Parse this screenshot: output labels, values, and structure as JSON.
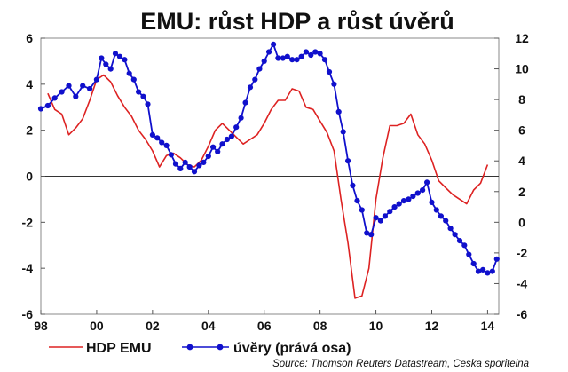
{
  "chart_data": {
    "type": "line",
    "title": "EMU: růst HDP a růst úvěrů",
    "source": "Source: Thomson Reuters Datastream, Ceska sporitelna",
    "x_ticks": [
      "98",
      "00",
      "02",
      "04",
      "06",
      "08",
      "10",
      "12",
      "14"
    ],
    "x_range": [
      1998.0,
      2014.4
    ],
    "y_left": {
      "range": [
        -6,
        6
      ],
      "ticks": [
        "6",
        "4",
        "2",
        "0",
        "-2",
        "-4",
        "-6"
      ]
    },
    "y_right": {
      "range": [
        -6,
        12
      ],
      "ticks": [
        "12",
        "10",
        "8",
        "6",
        "4",
        "2",
        "0",
        "-2",
        "-4",
        "-6"
      ]
    },
    "grid": false,
    "legend_position": "bottom",
    "colors": {
      "gdp": "#dd2222",
      "credit": "#1010cc"
    },
    "series": [
      {
        "name": "HDP EMU",
        "axis": "left",
        "marker": "none",
        "points": [
          [
            1998.25,
            3.6
          ],
          [
            1998.5,
            2.9
          ],
          [
            1998.75,
            2.7
          ],
          [
            1999.0,
            1.8
          ],
          [
            1999.25,
            2.1
          ],
          [
            1999.5,
            2.5
          ],
          [
            1999.75,
            3.3
          ],
          [
            2000.0,
            4.2
          ],
          [
            2000.25,
            4.4
          ],
          [
            2000.5,
            4.1
          ],
          [
            2000.75,
            3.5
          ],
          [
            2001.0,
            3.0
          ],
          [
            2001.25,
            2.6
          ],
          [
            2001.5,
            2.0
          ],
          [
            2001.75,
            1.6
          ],
          [
            2002.0,
            1.1
          ],
          [
            2002.25,
            0.4
          ],
          [
            2002.5,
            0.9
          ],
          [
            2002.75,
            1.0
          ],
          [
            2003.0,
            0.8
          ],
          [
            2003.25,
            0.5
          ],
          [
            2003.5,
            0.4
          ],
          [
            2003.75,
            0.7
          ],
          [
            2004.0,
            1.3
          ],
          [
            2004.25,
            2.0
          ],
          [
            2004.5,
            2.3
          ],
          [
            2004.75,
            2.0
          ],
          [
            2005.0,
            1.7
          ],
          [
            2005.25,
            1.4
          ],
          [
            2005.5,
            1.6
          ],
          [
            2005.75,
            1.8
          ],
          [
            2006.0,
            2.3
          ],
          [
            2006.25,
            2.9
          ],
          [
            2006.5,
            3.3
          ],
          [
            2006.75,
            3.3
          ],
          [
            2007.0,
            3.8
          ],
          [
            2007.25,
            3.7
          ],
          [
            2007.5,
            3.0
          ],
          [
            2007.75,
            2.9
          ],
          [
            2008.0,
            2.4
          ],
          [
            2008.25,
            1.9
          ],
          [
            2008.5,
            1.1
          ],
          [
            2008.75,
            -1.0
          ],
          [
            2009.0,
            -2.9
          ],
          [
            2009.25,
            -5.3
          ],
          [
            2009.5,
            -5.2
          ],
          [
            2009.75,
            -4.0
          ],
          [
            2010.0,
            -1.0
          ],
          [
            2010.25,
            0.8
          ],
          [
            2010.5,
            2.2
          ],
          [
            2010.75,
            2.2
          ],
          [
            2011.0,
            2.3
          ],
          [
            2011.25,
            2.7
          ],
          [
            2011.5,
            1.8
          ],
          [
            2011.75,
            1.4
          ],
          [
            2012.0,
            0.7
          ],
          [
            2012.25,
            -0.2
          ],
          [
            2012.5,
            -0.5
          ],
          [
            2012.75,
            -0.8
          ],
          [
            2013.0,
            -1.0
          ],
          [
            2013.25,
            -1.2
          ],
          [
            2013.5,
            -0.6
          ],
          [
            2013.75,
            -0.3
          ],
          [
            2014.0,
            0.5
          ]
        ]
      },
      {
        "name": "úvěry (pravá osa)",
        "axis": "right",
        "marker": "dot",
        "points": [
          [
            1998.0,
            7.4
          ],
          [
            1998.25,
            7.6
          ],
          [
            1998.5,
            8.1
          ],
          [
            1998.75,
            8.5
          ],
          [
            1999.0,
            8.9
          ],
          [
            1999.25,
            8.2
          ],
          [
            1999.5,
            8.9
          ],
          [
            1999.75,
            8.7
          ],
          [
            2000.0,
            9.3
          ],
          [
            2000.17,
            10.7
          ],
          [
            2000.33,
            10.3
          ],
          [
            2000.5,
            10.0
          ],
          [
            2000.67,
            11.0
          ],
          [
            2000.83,
            10.8
          ],
          [
            2001.0,
            10.6
          ],
          [
            2001.17,
            9.7
          ],
          [
            2001.33,
            9.3
          ],
          [
            2001.5,
            8.5
          ],
          [
            2001.67,
            8.2
          ],
          [
            2001.83,
            7.7
          ],
          [
            2002.0,
            5.7
          ],
          [
            2002.17,
            5.5
          ],
          [
            2002.33,
            5.2
          ],
          [
            2002.5,
            5.0
          ],
          [
            2002.67,
            4.4
          ],
          [
            2002.83,
            3.8
          ],
          [
            2003.0,
            3.5
          ],
          [
            2003.17,
            3.9
          ],
          [
            2003.33,
            3.6
          ],
          [
            2003.5,
            3.3
          ],
          [
            2003.67,
            3.7
          ],
          [
            2003.83,
            3.9
          ],
          [
            2004.0,
            4.3
          ],
          [
            2004.17,
            4.9
          ],
          [
            2004.33,
            4.6
          ],
          [
            2004.5,
            5.1
          ],
          [
            2004.67,
            5.4
          ],
          [
            2004.83,
            5.6
          ],
          [
            2005.0,
            6.2
          ],
          [
            2005.17,
            6.8
          ],
          [
            2005.33,
            7.8
          ],
          [
            2005.5,
            8.8
          ],
          [
            2005.67,
            9.3
          ],
          [
            2005.83,
            10.0
          ],
          [
            2006.0,
            10.5
          ],
          [
            2006.17,
            11.1
          ],
          [
            2006.33,
            11.6
          ],
          [
            2006.5,
            10.7
          ],
          [
            2006.67,
            10.7
          ],
          [
            2006.83,
            10.8
          ],
          [
            2007.0,
            10.6
          ],
          [
            2007.17,
            10.6
          ],
          [
            2007.33,
            10.8
          ],
          [
            2007.5,
            11.1
          ],
          [
            2007.67,
            10.9
          ],
          [
            2007.83,
            11.1
          ],
          [
            2008.0,
            11.0
          ],
          [
            2008.17,
            10.6
          ],
          [
            2008.33,
            9.8
          ],
          [
            2008.5,
            9.0
          ],
          [
            2008.67,
            7.2
          ],
          [
            2008.83,
            5.9
          ],
          [
            2009.0,
            4.0
          ],
          [
            2009.17,
            2.4
          ],
          [
            2009.33,
            1.4
          ],
          [
            2009.5,
            0.8
          ],
          [
            2009.67,
            -0.7
          ],
          [
            2009.83,
            -0.8
          ],
          [
            2010.0,
            0.3
          ],
          [
            2010.17,
            0.1
          ],
          [
            2010.33,
            0.4
          ],
          [
            2010.5,
            0.7
          ],
          [
            2010.67,
            1.0
          ],
          [
            2010.83,
            1.2
          ],
          [
            2011.0,
            1.4
          ],
          [
            2011.17,
            1.5
          ],
          [
            2011.33,
            1.7
          ],
          [
            2011.5,
            1.9
          ],
          [
            2011.67,
            2.1
          ],
          [
            2011.83,
            2.6
          ],
          [
            2012.0,
            1.3
          ],
          [
            2012.17,
            0.8
          ],
          [
            2012.33,
            0.4
          ],
          [
            2012.5,
            0.1
          ],
          [
            2012.67,
            -0.4
          ],
          [
            2012.83,
            -0.8
          ],
          [
            2013.0,
            -1.2
          ],
          [
            2013.17,
            -1.5
          ],
          [
            2013.33,
            -2.1
          ],
          [
            2013.5,
            -2.7
          ],
          [
            2013.67,
            -3.2
          ],
          [
            2013.83,
            -3.1
          ],
          [
            2014.0,
            -3.3
          ],
          [
            2014.17,
            -3.2
          ],
          [
            2014.33,
            -2.4
          ]
        ]
      }
    ]
  },
  "legend": {
    "gdp_label": "HDP EMU",
    "credit_label": "úvěry (prává osa)"
  }
}
